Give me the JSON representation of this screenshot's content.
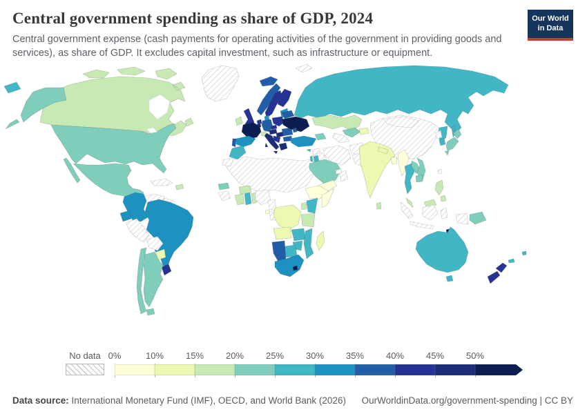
{
  "header": {
    "title": "Central government spending as share of GDP, 2024",
    "subtitle": "Central government expense (cash payments for operating activities of the government in providing goods and services), as share of GDP. It excludes capital investment, such as infrastructure or equipment.",
    "logo": {
      "line1": "Our World",
      "line2": "in Data",
      "bg_color": "#16355c",
      "accent_color": "#cb3d2c"
    }
  },
  "legend": {
    "no_data_label": "No data",
    "ticks": [
      "0%",
      "10%",
      "15%",
      "20%",
      "25%",
      "30%",
      "35%",
      "40%",
      "45%",
      "50%"
    ]
  },
  "footer": {
    "source_label": "Data source:",
    "source_text": " International Monetary Fund (IMF), OECD, and World Bank (2026)",
    "link_text": "OurWorldinData.org/government-spending | CC BY"
  },
  "chart_data": {
    "type": "choropleth_map",
    "title": "Central government spending as share of GDP, 2024",
    "unit": "% of GDP",
    "legend_position": "bottom",
    "no_data_style": "gray diagonal hatching",
    "bins": [
      {
        "label": "0-10%",
        "color": "#ffffd9"
      },
      {
        "label": "10-15%",
        "color": "#edf8b1"
      },
      {
        "label": "15-20%",
        "color": "#c7e9b4"
      },
      {
        "label": "20-25%",
        "color": "#7fcdbb"
      },
      {
        "label": "25-30%",
        "color": "#41b6c4"
      },
      {
        "label": "30-35%",
        "color": "#1d91c0"
      },
      {
        "label": "35-40%",
        "color": "#225ea8"
      },
      {
        "label": "40-45%",
        "color": "#253494"
      },
      {
        "label": "45-50%",
        "color": "#1c2d78"
      },
      {
        "label": "50%+",
        "color": "#0b1d51"
      }
    ],
    "countries": [
      {
        "id": "canada",
        "name": "Canada",
        "bin": 2,
        "value": "15-20%"
      },
      {
        "id": "usa",
        "name": "United States",
        "bin": 3,
        "value": "20-25%"
      },
      {
        "id": "mexico",
        "name": "Mexico",
        "bin": 3,
        "value": "20-25%"
      },
      {
        "id": "guatemala",
        "name": "Guatemala",
        "bin": 0,
        "value": "0-10%"
      },
      {
        "id": "honduras",
        "name": "Honduras",
        "bin": 2,
        "value": "15-20%"
      },
      {
        "id": "nicaragua",
        "name": "Nicaragua",
        "bin": 4,
        "value": "25-30%"
      },
      {
        "id": "costa-rica",
        "name": "Costa Rica",
        "bin": 5,
        "value": "30-35%"
      },
      {
        "id": "panama",
        "name": "Panama",
        "bin": 4,
        "value": "25-30%"
      },
      {
        "id": "cuba",
        "name": "Cuba",
        "bin": -1,
        "value": "No data"
      },
      {
        "id": "dominican-republic",
        "name": "Dominican Republic",
        "bin": 2,
        "value": "15-20%"
      },
      {
        "id": "colombia",
        "name": "Colombia",
        "bin": 5,
        "value": "30-35%"
      },
      {
        "id": "venezuela",
        "name": "Venezuela",
        "bin": -1,
        "value": "No data"
      },
      {
        "id": "guyana-suriname",
        "name": "Guyana and Suriname",
        "bin": -1,
        "value": "No data"
      },
      {
        "id": "ecuador",
        "name": "Ecuador",
        "bin": 5,
        "value": "30-35%"
      },
      {
        "id": "peru",
        "name": "Peru",
        "bin": -1,
        "value": "No data"
      },
      {
        "id": "brazil",
        "name": "Brazil",
        "bin": 5,
        "value": "30-35%"
      },
      {
        "id": "bolivia",
        "name": "Bolivia",
        "bin": -1,
        "value": "No data"
      },
      {
        "id": "paraguay",
        "name": "Paraguay",
        "bin": 1,
        "value": "10-15%"
      },
      {
        "id": "uruguay",
        "name": "Uruguay",
        "bin": 7,
        "value": "40-45%"
      },
      {
        "id": "argentina",
        "name": "Argentina",
        "bin": 3,
        "value": "20-25%"
      },
      {
        "id": "chile",
        "name": "Chile",
        "bin": 3,
        "value": "20-25%"
      },
      {
        "id": "greenland",
        "name": "Greenland",
        "bin": -1,
        "value": "No data"
      },
      {
        "id": "iceland",
        "name": "Iceland",
        "bin": 6,
        "value": "35-40%"
      },
      {
        "id": "ireland",
        "name": "Ireland",
        "bin": 2,
        "value": "15-20%"
      },
      {
        "id": "uk",
        "name": "United Kingdom",
        "bin": 7,
        "value": "40-45%"
      },
      {
        "id": "norway",
        "name": "Norway",
        "bin": 6,
        "value": "35-40%"
      },
      {
        "id": "sweden",
        "name": "Sweden",
        "bin": 7,
        "value": "40-45%"
      },
      {
        "id": "finland",
        "name": "Finland",
        "bin": 7,
        "value": "40-45%"
      },
      {
        "id": "baltics",
        "name": "Baltic states",
        "bin": 5,
        "value": "30-35%"
      },
      {
        "id": "denmark",
        "name": "Denmark",
        "bin": 5,
        "value": "30-35%"
      },
      {
        "id": "netherlands",
        "name": "Netherlands",
        "bin": 7,
        "value": "40-45%"
      },
      {
        "id": "belgium",
        "name": "Belgium",
        "bin": 8,
        "value": "45-50%"
      },
      {
        "id": "germany",
        "name": "Germany",
        "bin": 6,
        "value": "35-40%"
      },
      {
        "id": "france",
        "name": "France",
        "bin": 9,
        "value": "50%+"
      },
      {
        "id": "switzerland",
        "name": "Switzerland",
        "bin": 2,
        "value": "15-20%"
      },
      {
        "id": "spain",
        "name": "Spain",
        "bin": 5,
        "value": "30-35%"
      },
      {
        "id": "portugal",
        "name": "Portugal",
        "bin": 6,
        "value": "35-40%"
      },
      {
        "id": "italy",
        "name": "Italy",
        "bin": 8,
        "value": "45-50%"
      },
      {
        "id": "austria",
        "name": "Austria",
        "bin": 8,
        "value": "45-50%"
      },
      {
        "id": "czechia",
        "name": "Czechia",
        "bin": 7,
        "value": "40-45%"
      },
      {
        "id": "poland",
        "name": "Poland",
        "bin": 7,
        "value": "40-45%"
      },
      {
        "id": "hungary",
        "name": "Hungary",
        "bin": 8,
        "value": "45-50%"
      },
      {
        "id": "balkans",
        "name": "Serbia and Western Balkans",
        "bin": 7,
        "value": "40-45%"
      },
      {
        "id": "greece",
        "name": "Greece",
        "bin": 8,
        "value": "45-50%"
      },
      {
        "id": "romania",
        "name": "Romania",
        "bin": 6,
        "value": "35-40%"
      },
      {
        "id": "bulgaria",
        "name": "Bulgaria",
        "bin": 6,
        "value": "35-40%"
      },
      {
        "id": "moldova",
        "name": "Moldova",
        "bin": 6,
        "value": "35-40%"
      },
      {
        "id": "ukraine",
        "name": "Ukraine",
        "bin": 9,
        "value": "50%+"
      },
      {
        "id": "belarus",
        "name": "Belarus",
        "bin": 6,
        "value": "35-40%"
      },
      {
        "id": "turkey",
        "name": "Turkey",
        "bin": 5,
        "value": "30-35%"
      },
      {
        "id": "cyprus",
        "name": "Cyprus",
        "bin": 4,
        "value": "25-30%"
      },
      {
        "id": "caucasus",
        "name": "Georgia, Armenia and Azerbaijan",
        "bin": 3,
        "value": "20-25%"
      },
      {
        "id": "russia",
        "name": "Russia",
        "bin": 4,
        "value": "25-30%"
      },
      {
        "id": "kazakhstan",
        "name": "Kazakhstan",
        "bin": 2,
        "value": "15-20%"
      },
      {
        "id": "uzbekistan",
        "name": "Uzbekistan",
        "bin": 3,
        "value": "20-25%"
      },
      {
        "id": "turkmenistan",
        "name": "Turkmenistan",
        "bin": -1,
        "value": "No data"
      },
      {
        "id": "kyrgyzstan-tajikistan",
        "name": "Kyrgyzstan and Tajikistan",
        "bin": 1,
        "value": "10-15%"
      },
      {
        "id": "china",
        "name": "China",
        "bin": -1,
        "value": "No data"
      },
      {
        "id": "mongolia",
        "name": "Mongolia",
        "bin": -1,
        "value": "No data"
      },
      {
        "id": "north-korea",
        "name": "North Korea",
        "bin": -1,
        "value": "No data"
      },
      {
        "id": "south-korea",
        "name": "South Korea",
        "bin": 4,
        "value": "25-30%"
      },
      {
        "id": "japan",
        "name": "Japan",
        "bin": 3,
        "value": "20-25%"
      },
      {
        "id": "taiwan",
        "name": "Taiwan",
        "bin": -1,
        "value": "No data"
      },
      {
        "id": "india",
        "name": "India",
        "bin": 1,
        "value": "10-15%"
      },
      {
        "id": "nepal",
        "name": "Nepal",
        "bin": 1,
        "value": "10-15%"
      },
      {
        "id": "bangladesh",
        "name": "Bangladesh",
        "bin": 0,
        "value": "0-10%"
      },
      {
        "id": "sri-lanka",
        "name": "Sri Lanka",
        "bin": 2,
        "value": "15-20%"
      },
      {
        "id": "pakistan",
        "name": "Pakistan",
        "bin": -1,
        "value": "No data"
      },
      {
        "id": "afghanistan",
        "name": "Afghanistan",
        "bin": -1,
        "value": "No data"
      },
      {
        "id": "iran",
        "name": "Iran",
        "bin": -1,
        "value": "No data"
      },
      {
        "id": "iraq",
        "name": "Iraq",
        "bin": -1,
        "value": "No data"
      },
      {
        "id": "syria",
        "name": "Syria",
        "bin": -1,
        "value": "No data"
      },
      {
        "id": "israel",
        "name": "Israel",
        "bin": 4,
        "value": "25-30%"
      },
      {
        "id": "jordan",
        "name": "Jordan",
        "bin": 4,
        "value": "25-30%"
      },
      {
        "id": "saudi-arabia",
        "name": "Saudi Arabia",
        "bin": 3,
        "value": "20-25%"
      },
      {
        "id": "yemen",
        "name": "Yemen",
        "bin": 0,
        "value": "0-10%"
      },
      {
        "id": "oman",
        "name": "Oman",
        "bin": -1,
        "value": "No data"
      },
      {
        "id": "uae-qatar",
        "name": "United Arab Emirates and Qatar",
        "bin": -1,
        "value": "No data"
      },
      {
        "id": "morocco",
        "name": "Morocco",
        "bin": 4,
        "value": "25-30%"
      },
      {
        "id": "western-sahara",
        "name": "Western Sahara",
        "bin": -1,
        "value": "No data"
      },
      {
        "id": "north-africa-region",
        "name": "Algeria, Libya, Egypt, Mauritania, Mali, Niger, Chad and Sudan",
        "bin": -1,
        "value": "No data"
      },
      {
        "id": "guinea-region",
        "name": "Guinea and Sierra Leone",
        "bin": -1,
        "value": "No data"
      },
      {
        "id": "senegal",
        "name": "Senegal",
        "bin": 3,
        "value": "20-25%"
      },
      {
        "id": "ivory-coast",
        "name": "Cote d'Ivoire",
        "bin": 2,
        "value": "15-20%"
      },
      {
        "id": "ghana",
        "name": "Ghana",
        "bin": 4,
        "value": "25-30%"
      },
      {
        "id": "burkina-faso",
        "name": "Burkina Faso",
        "bin": 2,
        "value": "15-20%"
      },
      {
        "id": "togo-benin",
        "name": "Togo and Benin",
        "bin": 2,
        "value": "15-20%"
      },
      {
        "id": "nigeria",
        "name": "Nigeria",
        "bin": -1,
        "value": "No data"
      },
      {
        "id": "cameroon",
        "name": "Cameroon",
        "bin": -1,
        "value": "No data"
      },
      {
        "id": "equatorial-guinea",
        "name": "Equatorial Guinea",
        "bin": 0,
        "value": "0-10%"
      },
      {
        "id": "gabon-congo",
        "name": "Gabon and Congo",
        "bin": -1,
        "value": "No data"
      },
      {
        "id": "ethiopia",
        "name": "Ethiopia",
        "bin": 0,
        "value": "0-10%"
      },
      {
        "id": "somalia",
        "name": "Somalia",
        "bin": 0,
        "value": "0-10%"
      },
      {
        "id": "kenya",
        "name": "Kenya",
        "bin": 4,
        "value": "25-30%"
      },
      {
        "id": "uganda",
        "name": "Uganda",
        "bin": 2,
        "value": "15-20%"
      },
      {
        "id": "tanzania",
        "name": "Tanzania",
        "bin": 2,
        "value": "15-20%"
      },
      {
        "id": "drc",
        "name": "Democratic Republic of Congo",
        "bin": 1,
        "value": "10-15%"
      },
      {
        "id": "angola",
        "name": "Angola",
        "bin": 1,
        "value": "10-15%"
      },
      {
        "id": "zambia",
        "name": "Zambia",
        "bin": 4,
        "value": "25-30%"
      },
      {
        "id": "mozambique",
        "name": "Mozambique",
        "bin": 4,
        "value": "25-30%"
      },
      {
        "id": "zimbabwe",
        "name": "Zimbabwe",
        "bin": 4,
        "value": "25-30%"
      },
      {
        "id": "botswana",
        "name": "Botswana",
        "bin": 4,
        "value": "25-30%"
      },
      {
        "id": "namibia",
        "name": "Namibia",
        "bin": 6,
        "value": "35-40%"
      },
      {
        "id": "south-africa",
        "name": "South Africa",
        "bin": 5,
        "value": "30-35%"
      },
      {
        "id": "lesotho",
        "name": "Lesotho",
        "bin": 9,
        "value": "50%+"
      },
      {
        "id": "madagascar",
        "name": "Madagascar",
        "bin": 1,
        "value": "10-15%"
      },
      {
        "id": "myanmar",
        "name": "Myanmar",
        "bin": 0,
        "value": "0-10%"
      },
      {
        "id": "thailand",
        "name": "Thailand",
        "bin": 4,
        "value": "25-30%"
      },
      {
        "id": "laos",
        "name": "Laos",
        "bin": 3,
        "value": "20-25%"
      },
      {
        "id": "vietnam",
        "name": "Vietnam",
        "bin": 3,
        "value": "20-25%"
      },
      {
        "id": "cambodia",
        "name": "Cambodia",
        "bin": 3,
        "value": "20-25%"
      },
      {
        "id": "malaysia",
        "name": "Malaysia",
        "bin": 2,
        "value": "15-20%"
      },
      {
        "id": "indonesia",
        "name": "Indonesia",
        "bin": -1,
        "value": "No data"
      },
      {
        "id": "philippines",
        "name": "Philippines",
        "bin": 2,
        "value": "15-20%"
      },
      {
        "id": "papua-new-guinea",
        "name": "Papua New Guinea",
        "bin": 3,
        "value": "20-25%"
      },
      {
        "id": "timor-leste",
        "name": "Timor-Leste",
        "bin": 9,
        "value": "50%+"
      },
      {
        "id": "australia",
        "name": "Australia",
        "bin": 4,
        "value": "25-30%"
      },
      {
        "id": "new-zealand",
        "name": "New Zealand",
        "bin": 7,
        "value": "40-45%"
      },
      {
        "id": "fiji",
        "name": "Fiji",
        "bin": 4,
        "value": "25-30%"
      },
      {
        "id": "new-caledonia",
        "name": "New Caledonia",
        "bin": 4,
        "value": "25-30%"
      },
      {
        "id": "svalbard",
        "name": "Svalbard",
        "bin": -1,
        "value": "No data"
      }
    ]
  }
}
